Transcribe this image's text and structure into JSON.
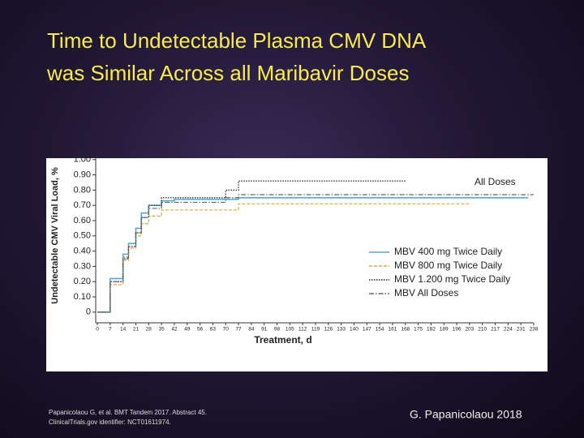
{
  "slide": {
    "title_lines": [
      "Time to Undetectable Plasma CMV DNA",
      "was Similar Across all Maribavir Doses"
    ],
    "footnote_lines": [
      "Papanicolaou G, et al. BMT Tandem 2017. Abstract 45.",
      "ClinicalTrials.gov identifier: NCT01611974."
    ],
    "author": "G. Papanicolaou 2018"
  },
  "chart_data": {
    "type": "line",
    "drawstyle": "steps-post",
    "xlabel": "Treatment, d",
    "ylabel": "Undetectable CMV Viral Load, %",
    "annotation": "All Doses",
    "xlim": [
      0,
      238
    ],
    "ylim": [
      -0.07,
      1.02
    ],
    "xticks": [
      0,
      7,
      14,
      21,
      28,
      35,
      42,
      49,
      56,
      63,
      70,
      77,
      84,
      91,
      98,
      105,
      112,
      119,
      126,
      133,
      140,
      147,
      154,
      161,
      168,
      175,
      182,
      189,
      196,
      203,
      210,
      217,
      224,
      231,
      238
    ],
    "yticks": [
      {
        "value": 1.0,
        "label": "1.00"
      },
      {
        "value": 0.9,
        "label": "0.90"
      },
      {
        "value": 0.8,
        "label": "0.80"
      },
      {
        "value": 0.7,
        "label": "0.70"
      },
      {
        "value": 0.6,
        "label": "0.60"
      },
      {
        "value": 0.5,
        "label": "0.50"
      },
      {
        "value": 0.4,
        "label": "0.40"
      },
      {
        "value": 0.3,
        "label": "0.30"
      },
      {
        "value": 0.2,
        "label": "0.20"
      },
      {
        "value": 0.1,
        "label": "0.10"
      },
      0
    ],
    "legend": "lower right",
    "series": [
      {
        "name": "MBV 400 mg Twice Daily",
        "color": "#5aa6d4",
        "dash": "solid",
        "x": [
          0,
          7,
          14,
          17,
          21,
          24,
          28,
          35,
          42,
          56,
          77,
          235
        ],
        "values": [
          0.0,
          0.22,
          0.38,
          0.45,
          0.55,
          0.65,
          0.7,
          0.73,
          0.74,
          0.74,
          0.75,
          0.75
        ]
      },
      {
        "name": "MBV 800 mg Twice Daily",
        "color": "#e5a33a",
        "dash": "dashed",
        "x": [
          0,
          7,
          14,
          17,
          21,
          24,
          28,
          35,
          77,
          203
        ],
        "values": [
          0.0,
          0.18,
          0.34,
          0.42,
          0.5,
          0.58,
          0.63,
          0.67,
          0.71,
          0.71
        ]
      },
      {
        "name": "MBV 1.200 mg Twice Daily",
        "color": "#222222",
        "dash": "dotted",
        "x": [
          0,
          7,
          14,
          17,
          21,
          24,
          28,
          35,
          70,
          77,
          168
        ],
        "values": [
          0.0,
          0.2,
          0.35,
          0.43,
          0.52,
          0.62,
          0.7,
          0.75,
          0.8,
          0.86,
          0.86
        ]
      },
      {
        "name": "MBV All Doses",
        "color": "#666666",
        "dash": "dashdot",
        "x": [
          0,
          7,
          14,
          17,
          21,
          24,
          28,
          35,
          70,
          77,
          238
        ],
        "values": [
          0.0,
          0.2,
          0.36,
          0.43,
          0.52,
          0.62,
          0.68,
          0.72,
          0.75,
          0.77,
          0.77
        ]
      }
    ]
  }
}
